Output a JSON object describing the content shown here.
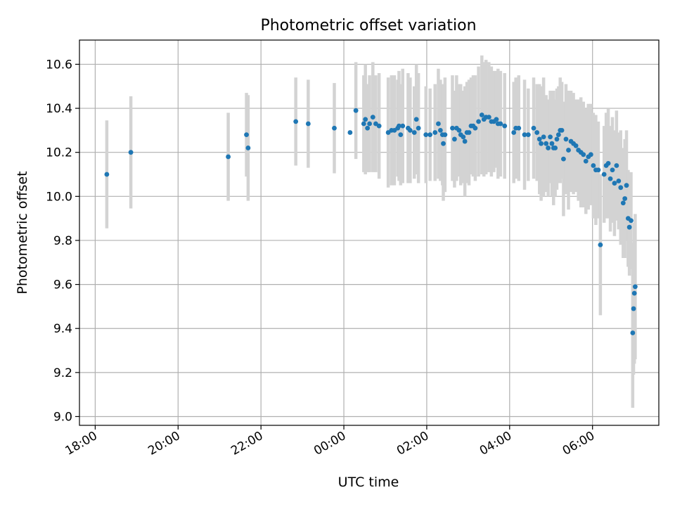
{
  "chart_data": {
    "type": "scatter",
    "title": "Photometric offset variation",
    "xlabel": "UTC time",
    "ylabel": "Photometric offset",
    "x_ticks": [
      "18:00",
      "20:00",
      "22:00",
      "00:00",
      "02:00",
      "04:00",
      "06:00"
    ],
    "y_ticks": [
      "9.0",
      "9.2",
      "9.4",
      "9.6",
      "9.8",
      "10.0",
      "10.2",
      "10.4",
      "10.6"
    ],
    "x_unit": "hours since 00:00 UTC",
    "xlim": [
      -6.38,
      7.6
    ],
    "ylim": [
      8.96,
      10.71
    ],
    "grid": true,
    "colors": {
      "point": "#1f77b4",
      "errorbar": "#d3d3d3",
      "grid": "#b0b0b0"
    },
    "points": [
      [
        -5.72,
        10.1,
        0.245
      ],
      [
        -5.14,
        10.2,
        0.255
      ],
      [
        -2.79,
        10.18,
        0.2
      ],
      [
        -2.35,
        10.28,
        0.19
      ],
      [
        -2.31,
        10.22,
        0.24
      ],
      [
        -1.16,
        10.34,
        0.2
      ],
      [
        -0.86,
        10.33,
        0.2
      ],
      [
        -0.23,
        10.31,
        0.205
      ],
      [
        0.15,
        10.29,
        0.0
      ],
      [
        0.29,
        10.39,
        0.22
      ],
      [
        0.48,
        10.33,
        0.22
      ],
      [
        0.52,
        10.35,
        0.25
      ],
      [
        0.57,
        10.31,
        0.2
      ],
      [
        0.62,
        10.33,
        0.22
      ],
      [
        0.7,
        10.36,
        0.25
      ],
      [
        0.77,
        10.33,
        0.22
      ],
      [
        0.85,
        10.32,
        0.24
      ],
      [
        1.07,
        10.29,
        0.25
      ],
      [
        1.15,
        10.3,
        0.25
      ],
      [
        1.22,
        10.3,
        0.25
      ],
      [
        1.3,
        10.31,
        0.22
      ],
      [
        1.33,
        10.32,
        0.25
      ],
      [
        1.37,
        10.28,
        0.23
      ],
      [
        1.42,
        10.32,
        0.26
      ],
      [
        1.55,
        10.31,
        0.25
      ],
      [
        1.6,
        10.3,
        0.24
      ],
      [
        1.7,
        10.29,
        0.21
      ],
      [
        1.75,
        10.35,
        0.25
      ],
      [
        1.8,
        10.31,
        0.25
      ],
      [
        1.98,
        10.28,
        0.22
      ],
      [
        2.08,
        10.28,
        0.21
      ],
      [
        2.2,
        10.29,
        0.22
      ],
      [
        2.28,
        10.33,
        0.25
      ],
      [
        2.33,
        10.3,
        0.23
      ],
      [
        2.38,
        10.28,
        0.23
      ],
      [
        2.4,
        10.24,
        0.26
      ],
      [
        2.44,
        10.28,
        0.26
      ],
      [
        2.62,
        10.31,
        0.24
      ],
      [
        2.67,
        10.26,
        0.22
      ],
      [
        2.72,
        10.31,
        0.24
      ],
      [
        2.78,
        10.3,
        0.21
      ],
      [
        2.82,
        10.28,
        0.23
      ],
      [
        2.88,
        10.27,
        0.21
      ],
      [
        2.92,
        10.25,
        0.25
      ],
      [
        2.97,
        10.29,
        0.23
      ],
      [
        3.02,
        10.29,
        0.24
      ],
      [
        3.07,
        10.32,
        0.22
      ],
      [
        3.12,
        10.32,
        0.23
      ],
      [
        3.17,
        10.31,
        0.24
      ],
      [
        3.25,
        10.34,
        0.25
      ],
      [
        3.33,
        10.37,
        0.27
      ],
      [
        3.38,
        10.35,
        0.26
      ],
      [
        3.43,
        10.36,
        0.26
      ],
      [
        3.5,
        10.36,
        0.25
      ],
      [
        3.56,
        10.34,
        0.25
      ],
      [
        3.62,
        10.34,
        0.23
      ],
      [
        3.68,
        10.35,
        0.22
      ],
      [
        3.72,
        10.33,
        0.25
      ],
      [
        3.78,
        10.33,
        0.24
      ],
      [
        3.88,
        10.32,
        0.24
      ],
      [
        4.1,
        10.29,
        0.23
      ],
      [
        4.15,
        10.31,
        0.23
      ],
      [
        4.22,
        10.31,
        0.24
      ],
      [
        4.36,
        10.28,
        0.25
      ],
      [
        4.45,
        10.28,
        0.21
      ],
      [
        4.58,
        10.31,
        0.23
      ],
      [
        4.66,
        10.29,
        0.22
      ],
      [
        4.72,
        10.26,
        0.25
      ],
      [
        4.76,
        10.24,
        0.26
      ],
      [
        4.82,
        10.27,
        0.27
      ],
      [
        4.88,
        10.24,
        0.22
      ],
      [
        4.93,
        10.22,
        0.22
      ],
      [
        4.98,
        10.27,
        0.21
      ],
      [
        5.02,
        10.24,
        0.24
      ],
      [
        5.06,
        10.22,
        0.26
      ],
      [
        5.1,
        10.22,
        0.22
      ],
      [
        5.14,
        10.26,
        0.23
      ],
      [
        5.18,
        10.28,
        0.22
      ],
      [
        5.22,
        10.3,
        0.24
      ],
      [
        5.26,
        10.3,
        0.22
      ],
      [
        5.3,
        10.17,
        0.26
      ],
      [
        5.36,
        10.26,
        0.25
      ],
      [
        5.42,
        10.21,
        0.27
      ],
      [
        5.48,
        10.25,
        0.23
      ],
      [
        5.54,
        10.24,
        0.23
      ],
      [
        5.6,
        10.23,
        0.21
      ],
      [
        5.66,
        10.21,
        0.23
      ],
      [
        5.72,
        10.2,
        0.25
      ],
      [
        5.78,
        10.19,
        0.24
      ],
      [
        5.84,
        10.16,
        0.24
      ],
      [
        5.9,
        10.18,
        0.24
      ],
      [
        5.96,
        10.19,
        0.23
      ],
      [
        6.02,
        10.14,
        0.24
      ],
      [
        6.08,
        10.12,
        0.25
      ],
      [
        6.14,
        10.12,
        0.22
      ],
      [
        6.19,
        9.78,
        0.32
      ],
      [
        6.28,
        10.1,
        0.22
      ],
      [
        6.33,
        10.14,
        0.24
      ],
      [
        6.38,
        10.15,
        0.25
      ],
      [
        6.43,
        10.08,
        0.24
      ],
      [
        6.48,
        10.12,
        0.24
      ],
      [
        6.53,
        10.06,
        0.24
      ],
      [
        6.58,
        10.14,
        0.25
      ],
      [
        6.63,
        10.07,
        0.22
      ],
      [
        6.68,
        10.04,
        0.26
      ],
      [
        6.74,
        9.97,
        0.25
      ],
      [
        6.78,
        9.99,
        0.27
      ],
      [
        6.82,
        10.05,
        0.25
      ],
      [
        6.86,
        9.9,
        0.22
      ],
      [
        6.89,
        9.86,
        0.22
      ],
      [
        6.93,
        9.89,
        0.22
      ],
      [
        6.97,
        9.38,
        0.34
      ],
      [
        6.99,
        9.49,
        0.3
      ],
      [
        7.01,
        9.56,
        0.32
      ],
      [
        7.03,
        9.59,
        0.33
      ]
    ]
  }
}
